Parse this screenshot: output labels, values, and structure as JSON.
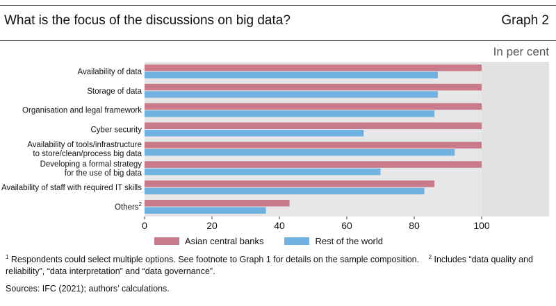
{
  "header": {
    "title": "What is the focus of the discussions on big data?",
    "graph_number": "Graph 2",
    "units": "In per cent"
  },
  "chart_data": {
    "type": "bar",
    "orientation": "horizontal",
    "categories": [
      [
        "Availability of data"
      ],
      [
        "Storage of data"
      ],
      [
        "Organisation and legal framework"
      ],
      [
        "Cyber security"
      ],
      [
        "Availability of tools/infrastructure",
        "to store/clean/process big data"
      ],
      [
        "Developing a formal strategy",
        "for the use of big data"
      ],
      [
        "Availability of staff with required IT skills"
      ],
      [
        "Others"
      ]
    ],
    "category_superscripts": [
      "",
      "",
      "",
      "",
      "",
      "",
      "",
      "2"
    ],
    "series": [
      {
        "name": "Asian central banks",
        "color": "#c97b8c",
        "values": [
          100,
          100,
          100,
          100,
          100,
          100,
          86,
          43
        ]
      },
      {
        "name": "Rest of the world",
        "color": "#6fb1e0",
        "values": [
          87,
          87,
          86,
          65,
          92,
          70,
          83,
          36
        ]
      }
    ],
    "xlim": [
      0,
      120
    ],
    "xticks": [
      0,
      20,
      40,
      60,
      80,
      100
    ],
    "shaded_region": {
      "from": 100,
      "to": 120,
      "color": "#e2e2e2"
    },
    "plot_background": "#e7e7e7",
    "grid": false,
    "legend_position": "bottom"
  },
  "footnotes": {
    "fn1_marker": "1",
    "fn1_text": " Respondents could select multiple options. See footnote to Graph 1 for details on the sample composition.",
    "fn2_marker": "2",
    "fn2_text": " Includes “data quality and reliability”, “data interpretation” and “data governance”."
  },
  "sources": "Sources: IFC (2021); authors’ calculations."
}
